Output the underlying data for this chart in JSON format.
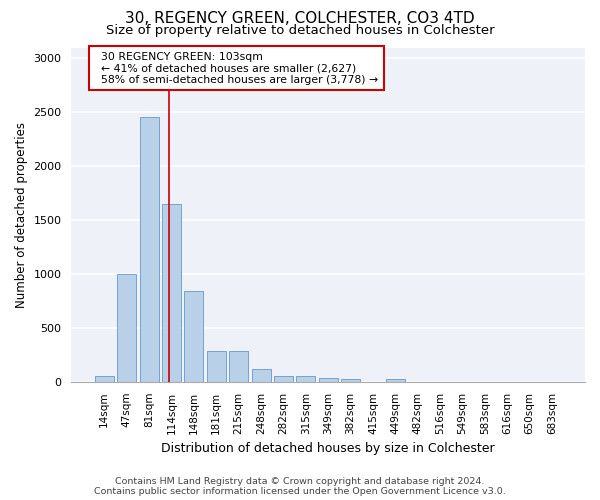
{
  "title1": "30, REGENCY GREEN, COLCHESTER, CO3 4TD",
  "title2": "Size of property relative to detached houses in Colchester",
  "xlabel": "Distribution of detached houses by size in Colchester",
  "ylabel": "Number of detached properties",
  "categories": [
    "14sqm",
    "47sqm",
    "81sqm",
    "114sqm",
    "148sqm",
    "181sqm",
    "215sqm",
    "248sqm",
    "282sqm",
    "315sqm",
    "349sqm",
    "382sqm",
    "415sqm",
    "449sqm",
    "482sqm",
    "516sqm",
    "549sqm",
    "583sqm",
    "616sqm",
    "650sqm",
    "683sqm"
  ],
  "values": [
    50,
    1000,
    2460,
    1650,
    840,
    290,
    290,
    120,
    50,
    50,
    40,
    25,
    0,
    30,
    0,
    0,
    0,
    0,
    0,
    0,
    0
  ],
  "bar_color": "#b8d0e8",
  "bar_edge_color": "#6699cc",
  "background_color": "#eef2f8",
  "grid_color": "#ffffff",
  "annotation_text": "  30 REGENCY GREEN: 103sqm\n  ← 41% of detached houses are smaller (2,627)\n  58% of semi-detached houses are larger (3,778) →",
  "annotation_box_color": "#ffffff",
  "annotation_box_edge": "#cc0000",
  "red_line_x": 2.88,
  "footer1": "Contains HM Land Registry data © Crown copyright and database right 2024.",
  "footer2": "Contains public sector information licensed under the Open Government Licence v3.0.",
  "ylim": [
    0,
    3100
  ],
  "yticks": [
    0,
    500,
    1000,
    1500,
    2000,
    2500,
    3000
  ],
  "title1_fontsize": 11,
  "title2_fontsize": 9.5,
  "xlabel_fontsize": 9,
  "ylabel_fontsize": 8.5,
  "tick_fontsize": 7.5,
  "annotation_fontsize": 7.8,
  "footer_fontsize": 6.8
}
